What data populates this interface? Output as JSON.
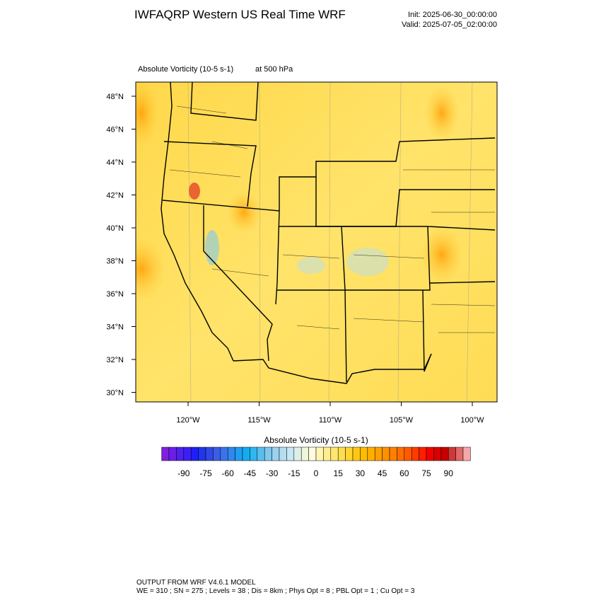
{
  "header": {
    "title": "IWFAQRP Western US Real Time WRF",
    "init": "Init: 2025-06-30_00:00:00",
    "valid": "Valid: 2025-07-05_02:00:00"
  },
  "plot": {
    "field": "Absolute Vorticity   (10-5 s-1)",
    "level": "at   500 hPa",
    "lat_labels": [
      "48°N",
      "46°N",
      "44°N",
      "42°N",
      "40°N",
      "38°N",
      "36°N",
      "34°N",
      "32°N",
      "30°N"
    ],
    "lon_labels": [
      "120°W",
      "115°W",
      "110°W",
      "105°W",
      "100°W"
    ]
  },
  "colorbar": {
    "label": "Absolute Vorticity  (10-5 s-1)",
    "ticks": [
      -90,
      -75,
      -60,
      -45,
      -30,
      -15,
      0,
      15,
      30,
      45,
      60,
      75,
      90
    ]
  },
  "footer": {
    "line1": "OUTPUT FROM WRF V4.6.1 MODEL",
    "line2": "WE = 310 ; SN = 275 ; Levels = 38 ; Dis = 8km ; Phys Opt = 8 ; PBL Opt = 1 ; Cu Opt = 3"
  }
}
